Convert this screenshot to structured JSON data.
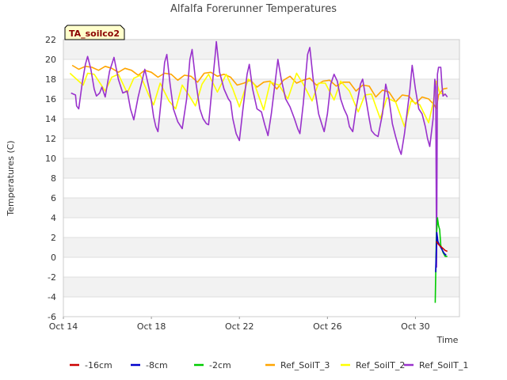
{
  "chart_data": {
    "type": "line",
    "title": "Alfalfa Forerunner Temperatures",
    "xlabel": "Time",
    "ylabel": "Temperatures (C)",
    "badge": "TA_soilco2",
    "x_range_days": [
      14,
      32
    ],
    "x_ticks": [
      {
        "day": 14,
        "label": "Oct 14"
      },
      {
        "day": 18,
        "label": "Oct 18"
      },
      {
        "day": 22,
        "label": "Oct 22"
      },
      {
        "day": 26,
        "label": "Oct 26"
      },
      {
        "day": 30,
        "label": "Oct 30"
      }
    ],
    "ylim": [
      -6,
      22
    ],
    "y_ticks": [
      -6,
      -4,
      -2,
      0,
      2,
      4,
      6,
      8,
      10,
      12,
      14,
      16,
      18,
      20,
      22
    ],
    "series": [
      {
        "name": "-16cm",
        "color": "#cc0000",
        "points": [
          [
            30.95,
            1.6
          ],
          [
            31.05,
            1.3
          ],
          [
            31.15,
            1.1
          ],
          [
            31.25,
            0.9
          ],
          [
            31.35,
            0.7
          ],
          [
            31.45,
            0.6
          ]
        ]
      },
      {
        "name": "-8cm",
        "color": "#0000cc",
        "points": [
          [
            30.92,
            -1.5
          ],
          [
            30.97,
            2.5
          ],
          [
            31.02,
            1.6
          ],
          [
            31.1,
            1.2
          ],
          [
            31.2,
            0.8
          ],
          [
            31.3,
            0.4
          ],
          [
            31.4,
            0.2
          ]
        ]
      },
      {
        "name": "-2cm",
        "color": "#00cc00",
        "points": [
          [
            30.9,
            -4.6
          ],
          [
            30.95,
            2.0
          ],
          [
            31.0,
            4.0
          ],
          [
            31.05,
            3.2
          ],
          [
            31.1,
            2.8
          ],
          [
            31.15,
            1.2
          ],
          [
            31.25,
            0.5
          ],
          [
            31.35,
            0.1
          ],
          [
            31.45,
            0.1
          ]
        ]
      },
      {
        "name": "Ref_SoilT_3",
        "color": "#ffa500",
        "points": [
          [
            14.4,
            19.4
          ],
          [
            14.7,
            19.0
          ],
          [
            15.0,
            19.3
          ],
          [
            15.3,
            19.2
          ],
          [
            15.6,
            18.9
          ],
          [
            15.9,
            19.3
          ],
          [
            16.2,
            19.1
          ],
          [
            16.5,
            18.7
          ],
          [
            16.8,
            19.1
          ],
          [
            17.1,
            18.9
          ],
          [
            17.4,
            18.4
          ],
          [
            17.7,
            18.9
          ],
          [
            18.0,
            18.7
          ],
          [
            18.3,
            18.2
          ],
          [
            18.6,
            18.6
          ],
          [
            18.9,
            18.5
          ],
          [
            19.2,
            17.9
          ],
          [
            19.5,
            18.4
          ],
          [
            19.8,
            18.3
          ],
          [
            20.1,
            17.7
          ],
          [
            20.4,
            18.6
          ],
          [
            20.7,
            18.7
          ],
          [
            21.0,
            18.3
          ],
          [
            21.3,
            18.5
          ],
          [
            21.6,
            18.2
          ],
          [
            21.9,
            17.4
          ],
          [
            22.2,
            17.6
          ],
          [
            22.5,
            17.9
          ],
          [
            22.8,
            17.2
          ],
          [
            23.1,
            17.7
          ],
          [
            23.4,
            17.8
          ],
          [
            23.7,
            17.0
          ],
          [
            24.0,
            17.9
          ],
          [
            24.3,
            18.3
          ],
          [
            24.6,
            17.6
          ],
          [
            24.9,
            17.9
          ],
          [
            25.2,
            18.1
          ],
          [
            25.5,
            17.4
          ],
          [
            25.8,
            17.8
          ],
          [
            26.1,
            17.9
          ],
          [
            26.4,
            17.3
          ],
          [
            26.7,
            17.7
          ],
          [
            27.0,
            17.7
          ],
          [
            27.3,
            16.8
          ],
          [
            27.6,
            17.4
          ],
          [
            27.9,
            17.3
          ],
          [
            28.2,
            16.2
          ],
          [
            28.5,
            16.9
          ],
          [
            28.8,
            16.7
          ],
          [
            29.1,
            15.7
          ],
          [
            29.4,
            16.4
          ],
          [
            29.7,
            16.3
          ],
          [
            30.0,
            15.5
          ],
          [
            30.3,
            16.2
          ],
          [
            30.6,
            16.0
          ],
          [
            30.85,
            15.4
          ],
          [
            30.95,
            15.0
          ],
          [
            31.05,
            16.4
          ],
          [
            31.25,
            17.0
          ],
          [
            31.45,
            17.1
          ]
        ]
      },
      {
        "name": "Ref_SoilT_2",
        "color": "#ffff00",
        "points": [
          [
            14.3,
            18.6
          ],
          [
            14.7,
            17.8
          ],
          [
            14.9,
            17.4
          ],
          [
            15.1,
            18.6
          ],
          [
            15.4,
            18.5
          ],
          [
            15.9,
            16.8
          ],
          [
            16.2,
            18.2
          ],
          [
            16.5,
            18.5
          ],
          [
            16.9,
            16.6
          ],
          [
            17.2,
            18.1
          ],
          [
            17.5,
            18.4
          ],
          [
            17.9,
            16.3
          ],
          [
            18.1,
            15.4
          ],
          [
            18.4,
            17.6
          ],
          [
            18.8,
            15.8
          ],
          [
            19.1,
            15.0
          ],
          [
            19.4,
            17.4
          ],
          [
            19.7,
            16.4
          ],
          [
            20.0,
            15.3
          ],
          [
            20.3,
            17.5
          ],
          [
            20.6,
            18.5
          ],
          [
            21.0,
            16.7
          ],
          [
            21.4,
            18.5
          ],
          [
            21.7,
            17.0
          ],
          [
            22.0,
            15.2
          ],
          [
            22.4,
            18.0
          ],
          [
            22.7,
            17.4
          ],
          [
            23.1,
            14.9
          ],
          [
            23.4,
            17.7
          ],
          [
            23.8,
            17.4
          ],
          [
            24.2,
            16.0
          ],
          [
            24.6,
            18.6
          ],
          [
            24.9,
            17.5
          ],
          [
            25.3,
            15.8
          ],
          [
            25.6,
            17.6
          ],
          [
            25.9,
            17.6
          ],
          [
            26.3,
            15.9
          ],
          [
            26.6,
            17.8
          ],
          [
            27.0,
            16.8
          ],
          [
            27.4,
            14.7
          ],
          [
            27.7,
            16.4
          ],
          [
            28.0,
            16.5
          ],
          [
            28.4,
            14.0
          ],
          [
            28.7,
            16.1
          ],
          [
            29.1,
            15.7
          ],
          [
            29.5,
            13.2
          ],
          [
            29.8,
            15.8
          ],
          [
            30.2,
            15.4
          ],
          [
            30.6,
            13.6
          ],
          [
            30.8,
            15.6
          ],
          [
            30.95,
            17.8
          ],
          [
            31.1,
            16.6
          ],
          [
            31.3,
            16.5
          ]
        ]
      },
      {
        "name": "Ref_SoilT_1",
        "color": "#9932cc",
        "points": [
          [
            14.35,
            16.6
          ],
          [
            14.55,
            16.4
          ],
          [
            14.6,
            15.3
          ],
          [
            14.7,
            15.0
          ],
          [
            14.85,
            17.5
          ],
          [
            15.0,
            19.5
          ],
          [
            15.1,
            20.3
          ],
          [
            15.25,
            19.0
          ],
          [
            15.4,
            17.0
          ],
          [
            15.5,
            16.3
          ],
          [
            15.65,
            16.6
          ],
          [
            15.75,
            17.2
          ],
          [
            15.9,
            16.2
          ],
          [
            16.1,
            18.8
          ],
          [
            16.3,
            20.2
          ],
          [
            16.5,
            18.0
          ],
          [
            16.7,
            16.6
          ],
          [
            16.9,
            16.8
          ],
          [
            17.05,
            15.0
          ],
          [
            17.2,
            13.9
          ],
          [
            17.4,
            16.2
          ],
          [
            17.7,
            19.0
          ],
          [
            17.9,
            17.0
          ],
          [
            18.0,
            15.8
          ],
          [
            18.1,
            14.2
          ],
          [
            18.2,
            13.2
          ],
          [
            18.3,
            12.7
          ],
          [
            18.45,
            16.0
          ],
          [
            18.6,
            19.7
          ],
          [
            18.7,
            20.5
          ],
          [
            18.85,
            17.5
          ],
          [
            19.0,
            15.0
          ],
          [
            19.2,
            13.7
          ],
          [
            19.4,
            13.0
          ],
          [
            19.6,
            16.0
          ],
          [
            19.75,
            20.0
          ],
          [
            19.85,
            21.0
          ],
          [
            20.0,
            18.0
          ],
          [
            20.2,
            15.0
          ],
          [
            20.35,
            14.0
          ],
          [
            20.5,
            13.5
          ],
          [
            20.6,
            13.4
          ],
          [
            20.75,
            17.0
          ],
          [
            20.9,
            20.5
          ],
          [
            20.95,
            21.8
          ],
          [
            21.1,
            18.7
          ],
          [
            21.3,
            17.0
          ],
          [
            21.5,
            16.0
          ],
          [
            21.6,
            15.7
          ],
          [
            21.7,
            14.0
          ],
          [
            21.85,
            12.5
          ],
          [
            22.0,
            11.8
          ],
          [
            22.15,
            14.8
          ],
          [
            22.35,
            18.5
          ],
          [
            22.45,
            19.5
          ],
          [
            22.6,
            17.0
          ],
          [
            22.8,
            15.0
          ],
          [
            23.0,
            14.7
          ],
          [
            23.15,
            13.4
          ],
          [
            23.3,
            12.3
          ],
          [
            23.45,
            14.5
          ],
          [
            23.65,
            18.2
          ],
          [
            23.75,
            20.0
          ],
          [
            23.9,
            18.0
          ],
          [
            24.1,
            16.0
          ],
          [
            24.3,
            15.2
          ],
          [
            24.5,
            14.0
          ],
          [
            24.65,
            13.0
          ],
          [
            24.75,
            12.5
          ],
          [
            24.9,
            15.5
          ],
          [
            25.1,
            20.5
          ],
          [
            25.2,
            21.2
          ],
          [
            25.35,
            18.0
          ],
          [
            25.5,
            16.0
          ],
          [
            25.6,
            14.5
          ],
          [
            25.75,
            13.4
          ],
          [
            25.85,
            12.7
          ],
          [
            26.0,
            14.5
          ],
          [
            26.15,
            17.5
          ],
          [
            26.3,
            18.5
          ],
          [
            26.45,
            17.8
          ],
          [
            26.6,
            16.0
          ],
          [
            26.75,
            15.0
          ],
          [
            26.9,
            14.3
          ],
          [
            27.0,
            13.2
          ],
          [
            27.15,
            12.7
          ],
          [
            27.3,
            15.0
          ],
          [
            27.5,
            17.5
          ],
          [
            27.6,
            18.0
          ],
          [
            27.75,
            16.0
          ],
          [
            27.9,
            14.0
          ],
          [
            28.0,
            12.8
          ],
          [
            28.15,
            12.4
          ],
          [
            28.3,
            12.2
          ],
          [
            28.5,
            14.5
          ],
          [
            28.65,
            17.5
          ],
          [
            28.8,
            16.0
          ],
          [
            28.95,
            13.5
          ],
          [
            29.1,
            12.2
          ],
          [
            29.25,
            11.0
          ],
          [
            29.35,
            10.4
          ],
          [
            29.5,
            12.5
          ],
          [
            29.75,
            17.0
          ],
          [
            29.85,
            19.4
          ],
          [
            30.0,
            17.0
          ],
          [
            30.15,
            15.0
          ],
          [
            30.3,
            14.5
          ],
          [
            30.45,
            13.2
          ],
          [
            30.55,
            12.0
          ],
          [
            30.65,
            11.2
          ],
          [
            30.8,
            14.0
          ],
          [
            30.88,
            18.0
          ],
          [
            30.92,
            17.2
          ],
          [
            30.96,
            -1.0
          ],
          [
            31.0,
            18.5
          ],
          [
            31.05,
            19.2
          ],
          [
            31.15,
            19.2
          ],
          [
            31.2,
            17.5
          ],
          [
            31.25,
            16.3
          ],
          [
            31.35,
            16.5
          ],
          [
            31.45,
            16.2
          ]
        ]
      }
    ]
  }
}
